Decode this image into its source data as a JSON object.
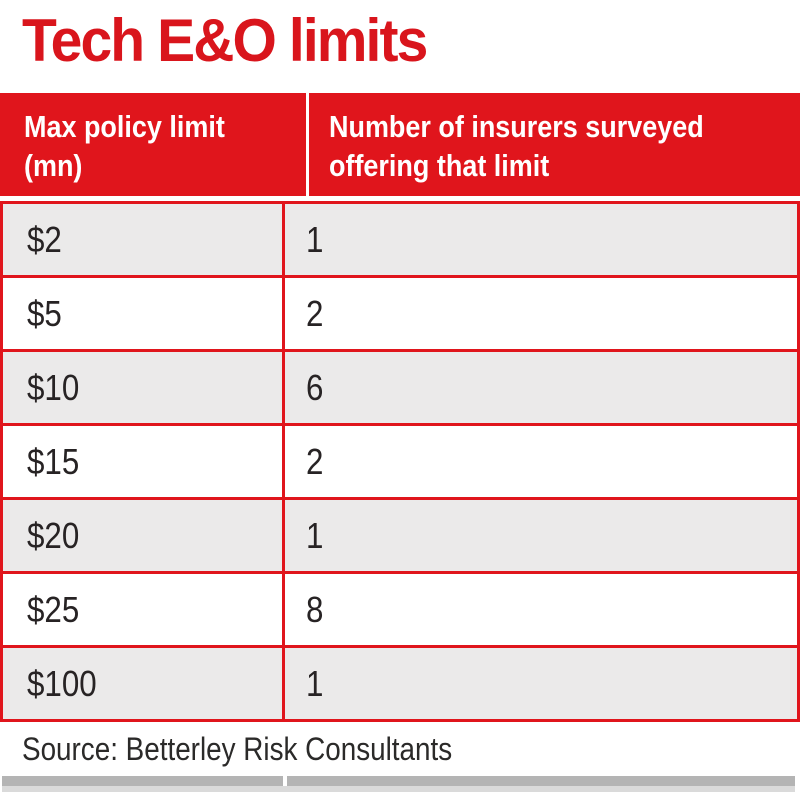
{
  "title": "Tech E&O limits",
  "colors": {
    "accent_red": "#e0151c",
    "title_red": "#d9151c",
    "row_stripe_gray": "#ebeaea",
    "body_text": "#272324",
    "bottom_bar_gray": "#b4b4b4"
  },
  "table": {
    "columns": [
      "Max policy limit (mn)",
      "Number of insurers surveyed offering that limit"
    ],
    "rows": [
      [
        "$2",
        "1"
      ],
      [
        "$5",
        "2"
      ],
      [
        "$10",
        "6"
      ],
      [
        "$15",
        "2"
      ],
      [
        "$20",
        "1"
      ],
      [
        "$25",
        "8"
      ],
      [
        "$100",
        "1"
      ]
    ]
  },
  "source": "Source: Betterley Risk Consultants",
  "chart_data": {
    "type": "table",
    "title": "Tech E&O limits",
    "categories": [
      "$2",
      "$5",
      "$10",
      "$15",
      "$20",
      "$25",
      "$100"
    ],
    "values": [
      1,
      2,
      6,
      2,
      1,
      8,
      1
    ],
    "xlabel": "Max policy limit (mn)",
    "ylabel": "Number of insurers surveyed offering that limit",
    "source": "Source: Betterley Risk Consultants"
  }
}
